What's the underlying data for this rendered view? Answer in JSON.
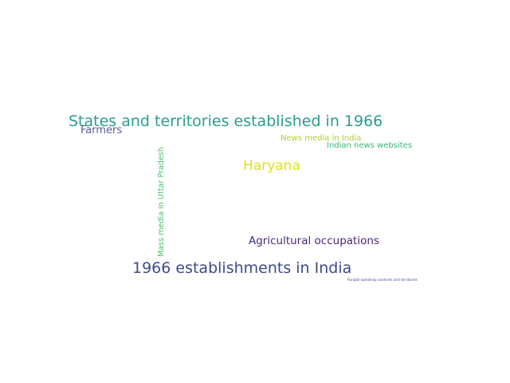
{
  "words": [
    {
      "text": "States and territories established in 1966",
      "color": "#2a9d8f"
    },
    {
      "text": "Farmers",
      "color": "#5b5f8f"
    },
    {
      "text": "News media in India",
      "color": "#b5cc35"
    },
    {
      "text": "Indian news websites",
      "color": "#35b779"
    },
    {
      "text": "Haryana",
      "color": "#dde318"
    },
    {
      "text": "Agricultural occupations",
      "color": "#482878"
    },
    {
      "text": "1966 establishments in India",
      "color": "#3e4a89"
    },
    {
      "text": "Punjabi-speaking countries and territories",
      "color": "#3b528b"
    },
    {
      "text": "Mass media in Uttar Pradesh",
      "color": "#4ac16d"
    }
  ]
}
